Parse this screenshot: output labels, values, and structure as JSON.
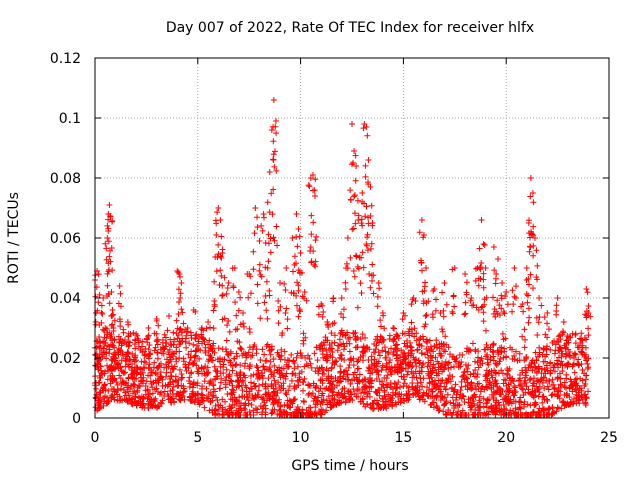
{
  "chart_data": {
    "type": "scatter",
    "title": "Day 007 of 2022, Rate Of TEC Index for receiver hlfx",
    "xlabel": "GPS time / hours",
    "ylabel": "ROTI / TECUs",
    "xlim": [
      0,
      25
    ],
    "ylim": [
      0,
      0.12
    ],
    "xticks": [
      0,
      5,
      10,
      15,
      20,
      25
    ],
    "xtick_labels": [
      "0",
      "5",
      "10",
      "15",
      "20",
      "25"
    ],
    "yticks": [
      0,
      0.02,
      0.04,
      0.06,
      0.08,
      0.1,
      0.12
    ],
    "ytick_labels": [
      "0",
      "0.02",
      "0.04",
      "0.06",
      "0.08",
      "0.1",
      "0.12"
    ],
    "grid": true,
    "marker": "+",
    "marker_color": "#ff0000",
    "series": [
      {
        "name": "ROTI",
        "x": [
          0.0,
          0.05,
          0.1,
          0.15,
          0.2,
          0.3,
          0.4,
          0.5,
          0.6,
          0.65,
          0.7,
          0.75,
          0.8,
          0.85,
          0.9,
          1.0,
          1.2,
          1.4,
          1.6,
          1.8,
          2.0,
          2.3,
          2.6,
          3.0,
          3.3,
          3.6,
          4.0,
          4.1,
          4.2,
          4.5,
          4.8,
          5.2,
          5.5,
          5.8,
          5.9,
          6.0,
          6.1,
          6.2,
          6.5,
          6.8,
          7.0,
          7.2,
          7.5,
          7.8,
          8.0,
          8.2,
          8.4,
          8.5,
          8.6,
          8.7,
          8.8,
          9.0,
          9.3,
          9.6,
          9.8,
          9.9,
          10.0,
          10.2,
          10.5,
          10.6,
          10.7,
          11.0,
          11.3,
          11.6,
          12.0,
          12.3,
          12.5,
          12.6,
          12.7,
          12.8,
          13.0,
          13.1,
          13.2,
          13.3,
          13.4,
          13.5,
          13.8,
          14.0,
          14.5,
          15.0,
          15.5,
          15.9,
          16.0,
          16.1,
          16.5,
          16.8,
          17.0,
          17.5,
          18.0,
          18.3,
          18.6,
          18.8,
          18.9,
          19.0,
          19.4,
          19.6,
          19.8,
          20.0,
          20.4,
          20.8,
          21.0,
          21.1,
          21.2,
          21.3,
          21.4,
          21.6,
          22.0,
          22.5,
          22.8,
          23.0,
          23.3,
          23.6,
          23.9,
          24.0
        ],
        "y": [
          0.046,
          0.035,
          0.049,
          0.02,
          0.027,
          0.015,
          0.04,
          0.03,
          0.06,
          0.068,
          0.071,
          0.067,
          0.042,
          0.036,
          0.03,
          0.02,
          0.044,
          0.025,
          0.032,
          0.018,
          0.028,
          0.022,
          0.03,
          0.033,
          0.026,
          0.034,
          0.049,
          0.048,
          0.045,
          0.03,
          0.036,
          0.03,
          0.032,
          0.039,
          0.061,
          0.07,
          0.066,
          0.055,
          0.045,
          0.05,
          0.042,
          0.035,
          0.048,
          0.07,
          0.059,
          0.068,
          0.05,
          0.082,
          0.096,
          0.106,
          0.099,
          0.045,
          0.05,
          0.06,
          0.068,
          0.063,
          0.055,
          0.042,
          0.08,
          0.081,
          0.074,
          0.038,
          0.032,
          0.04,
          0.04,
          0.06,
          0.098,
          0.089,
          0.084,
          0.066,
          0.075,
          0.098,
          0.097,
          0.086,
          0.077,
          0.065,
          0.045,
          0.035,
          0.03,
          0.035,
          0.04,
          0.066,
          0.061,
          0.05,
          0.043,
          0.035,
          0.045,
          0.05,
          0.048,
          0.04,
          0.05,
          0.066,
          0.058,
          0.05,
          0.057,
          0.053,
          0.045,
          0.042,
          0.05,
          0.038,
          0.05,
          0.065,
          0.08,
          0.075,
          0.06,
          0.04,
          0.035,
          0.04,
          0.032,
          0.026,
          0.02,
          0.025,
          0.043,
          0.035
        ]
      }
    ],
    "dense_band": {
      "x_range": [
        0,
        24
      ],
      "y_range": [
        0.002,
        0.026
      ]
    }
  }
}
